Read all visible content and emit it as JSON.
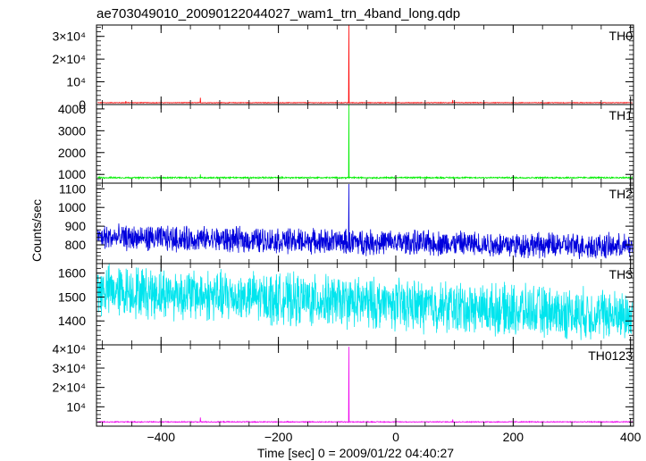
{
  "chart_data": {
    "type": "line",
    "title": "ae703049010_20090122044027_wam1_trn_4band_long.qdp",
    "xlabel": "Time [sec] 0 = 2009/01/22 04:40:27",
    "ylabel": "Counts/sec",
    "xlim": [
      -510,
      405
    ],
    "x_ticks": [
      {
        "value": -400,
        "label": "−400"
      },
      {
        "value": -200,
        "label": "−200"
      },
      {
        "value": 0,
        "label": "0"
      },
      {
        "value": 200,
        "label": "200"
      },
      {
        "value": 400,
        "label": "400"
      }
    ],
    "panels": [
      {
        "name": "TH0",
        "color": "#ff0000",
        "ylim": [
          0,
          35000
        ],
        "baseline": 800,
        "noise": 150,
        "spike": {
          "x": -80,
          "value": 35000
        },
        "minor_spikes": [
          {
            "x": -333,
            "value": 3000
          },
          {
            "x": 97,
            "value": 2000
          },
          {
            "x": -460,
            "value": 1500
          }
        ],
        "y_ticks": [
          {
            "value": 0,
            "label": "0"
          },
          {
            "value": 10000,
            "label": "10⁴"
          },
          {
            "value": 20000,
            "label": "2×10⁴"
          },
          {
            "value": 30000,
            "label": "3×10⁴"
          }
        ]
      },
      {
        "name": "TH1",
        "color": "#00ee00",
        "ylim": [
          600,
          4200
        ],
        "baseline": 850,
        "noise": 35,
        "spike": {
          "x": -80,
          "value": 4200
        },
        "minor_spikes": [
          {
            "x": -333,
            "value": 1000
          }
        ],
        "y_ticks": [
          {
            "value": 1000,
            "label": "1000"
          },
          {
            "value": 2000,
            "label": "2000"
          },
          {
            "value": 3000,
            "label": "3000"
          },
          {
            "value": 4000,
            "label": "4000"
          }
        ]
      },
      {
        "name": "TH2",
        "color": "#0000dd",
        "ylim": [
          700,
          1130
        ],
        "baseline_start": 840,
        "baseline_end": 790,
        "noise": 70,
        "spike": {
          "x": -80,
          "value": 1125
        },
        "minor_spikes": [],
        "y_ticks": [
          {
            "value": 800,
            "label": "800"
          },
          {
            "value": 900,
            "label": "900"
          },
          {
            "value": 1000,
            "label": "1000"
          },
          {
            "value": 1100,
            "label": "1100"
          }
        ]
      },
      {
        "name": "TH3",
        "color": "#00e5ee",
        "ylim": [
          1300,
          1640
        ],
        "baseline_start": 1530,
        "baseline_end": 1420,
        "noise": 110,
        "spike": null,
        "minor_spikes": [],
        "y_ticks": [
          {
            "value": 1400,
            "label": "1400"
          },
          {
            "value": 1500,
            "label": "1500"
          },
          {
            "value": 1600,
            "label": "1600"
          }
        ]
      },
      {
        "name": "TH0123",
        "color": "#ee00ee",
        "ylim": [
          0,
          42000
        ],
        "baseline": 2200,
        "noise": 250,
        "spike": {
          "x": -80,
          "value": 41000
        },
        "minor_spikes": [
          {
            "x": -333,
            "value": 4500
          },
          {
            "x": 97,
            "value": 3500
          }
        ],
        "y_ticks": [
          {
            "value": 10000,
            "label": "10⁴"
          },
          {
            "value": 20000,
            "label": "2×10⁴"
          },
          {
            "value": 30000,
            "label": "3×10⁴"
          },
          {
            "value": 40000,
            "label": "4×10⁴"
          }
        ]
      }
    ]
  }
}
